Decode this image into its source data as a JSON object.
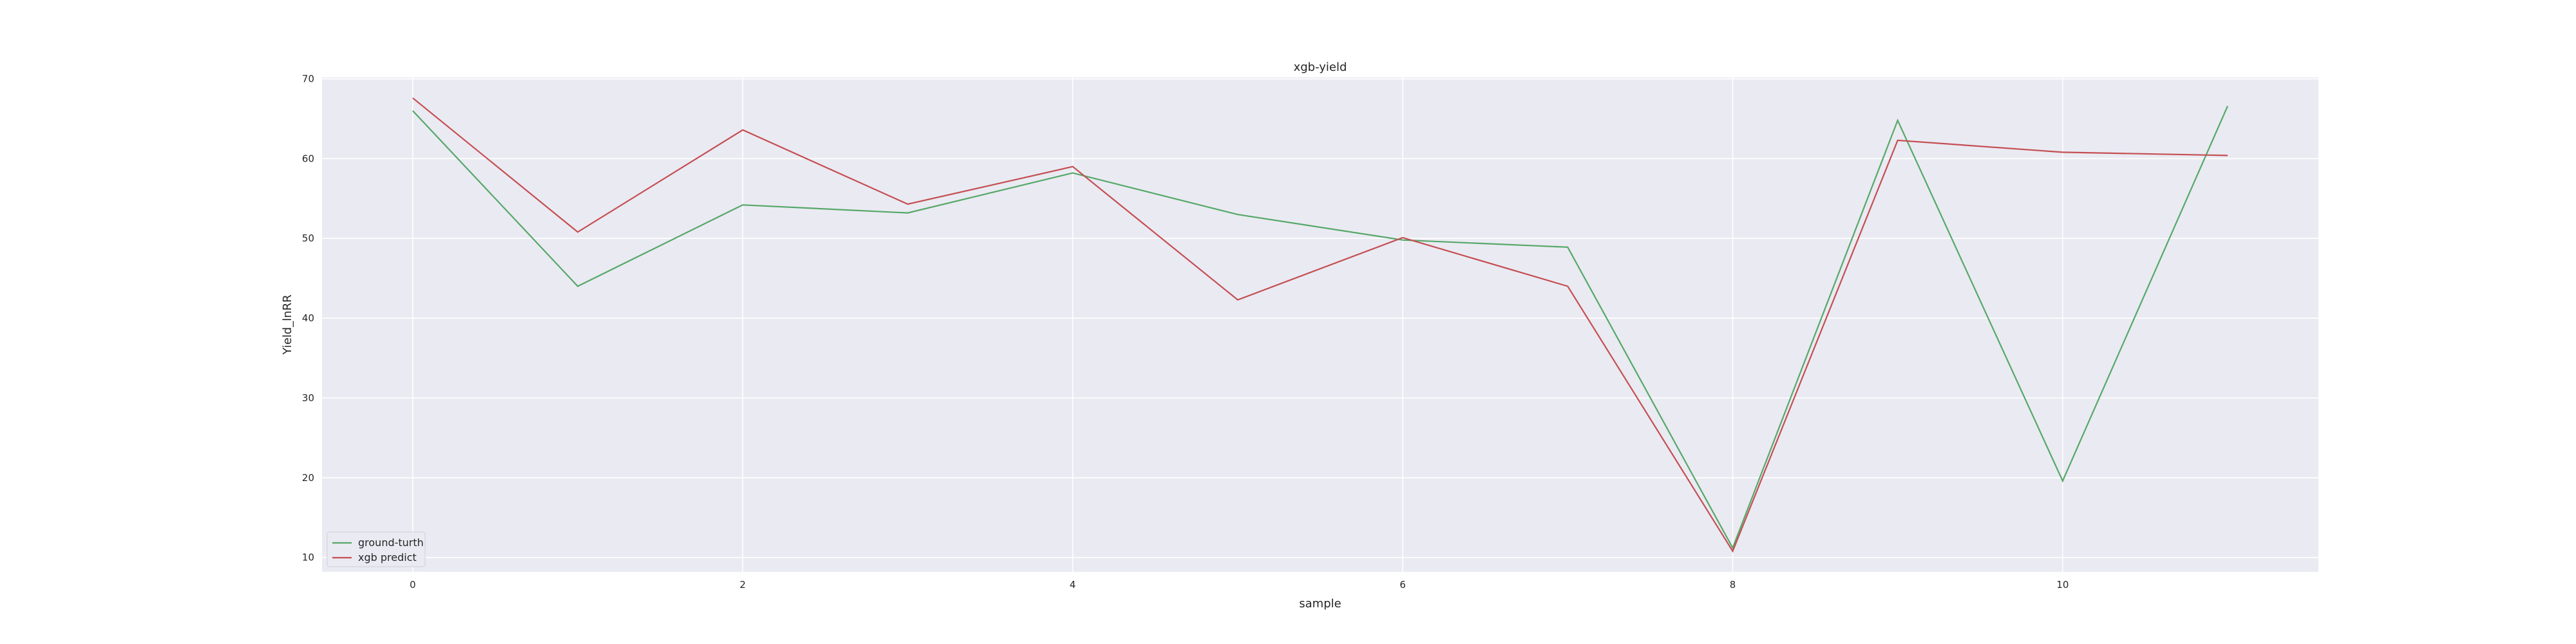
{
  "chart_data": {
    "type": "line",
    "title": "xgb-yield",
    "xlabel": "sample",
    "ylabel": "Yield_lnRR",
    "x": [
      0,
      1,
      2,
      3,
      4,
      5,
      6,
      7,
      8,
      9,
      10,
      11
    ],
    "xlim": [
      -0.55,
      11.55
    ],
    "ylim": [
      8.2,
      70.2
    ],
    "xticks": [
      0,
      2,
      4,
      6,
      8,
      10
    ],
    "yticks": [
      10,
      20,
      30,
      40,
      50,
      60,
      70
    ],
    "grid": true,
    "legend_position": "lower-left",
    "background": "#eaeaf2",
    "series": [
      {
        "name": "ground-turth",
        "color": "#55a868",
        "values": [
          66.0,
          44.0,
          54.2,
          53.2,
          58.2,
          53.0,
          49.8,
          48.9,
          11.2,
          64.8,
          19.6,
          66.6
        ]
      },
      {
        "name": "xgb predict",
        "color": "#c44e52",
        "values": [
          67.6,
          50.8,
          63.6,
          54.3,
          59.0,
          42.3,
          50.1,
          44.0,
          10.8,
          62.3,
          60.8,
          60.4
        ]
      }
    ]
  }
}
